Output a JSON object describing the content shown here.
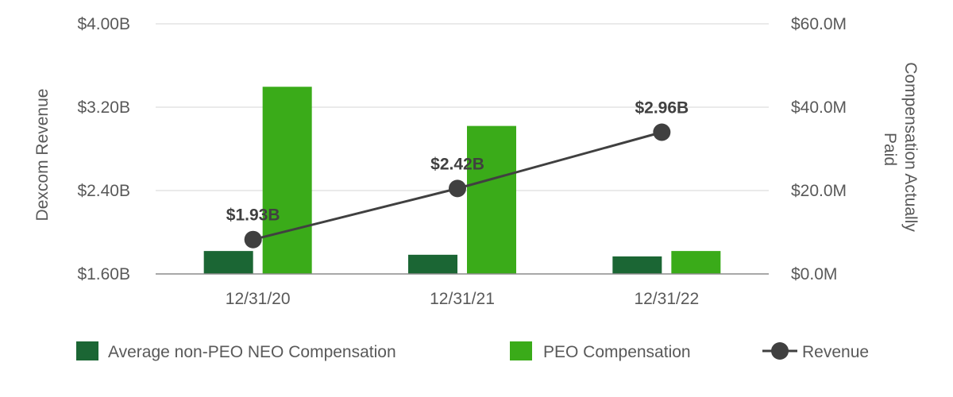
{
  "chart_data": {
    "type": "bar",
    "categories": [
      "12/31/20",
      "12/31/21",
      "12/31/22"
    ],
    "y_left": {
      "label": "Dexcom Revenue",
      "range": [
        1.6,
        4.0
      ],
      "ticks": [
        1.6,
        2.4,
        3.2,
        4.0
      ],
      "tick_labels": [
        "$1.60B",
        "$2.40B",
        "$3.20B",
        "$4.00B"
      ]
    },
    "y_right": {
      "label_lines": [
        "Compensation Actually",
        "Paid"
      ],
      "range": [
        0,
        60
      ],
      "ticks": [
        0,
        20,
        40,
        60
      ],
      "tick_labels": [
        "$0.0M",
        "$20.0M",
        "$40.0M",
        "$60.0M"
      ]
    },
    "series": [
      {
        "name": "Average non-PEO NEO Compensation",
        "type": "bar",
        "axis": "right",
        "color": "#1b6634",
        "values": [
          5.5,
          4.6,
          4.2
        ]
      },
      {
        "name": "PEO Compensation",
        "type": "bar",
        "axis": "right",
        "color": "#3aab19",
        "values": [
          44.9,
          35.5,
          5.5
        ]
      },
      {
        "name": "Revenue",
        "type": "line",
        "axis": "left",
        "color": "#404040",
        "values": [
          1.93,
          2.42,
          2.96
        ],
        "labels": [
          "$1.93B",
          "$2.42B",
          "$2.96B"
        ]
      }
    ],
    "grid": true,
    "legend_position": "bottom"
  }
}
